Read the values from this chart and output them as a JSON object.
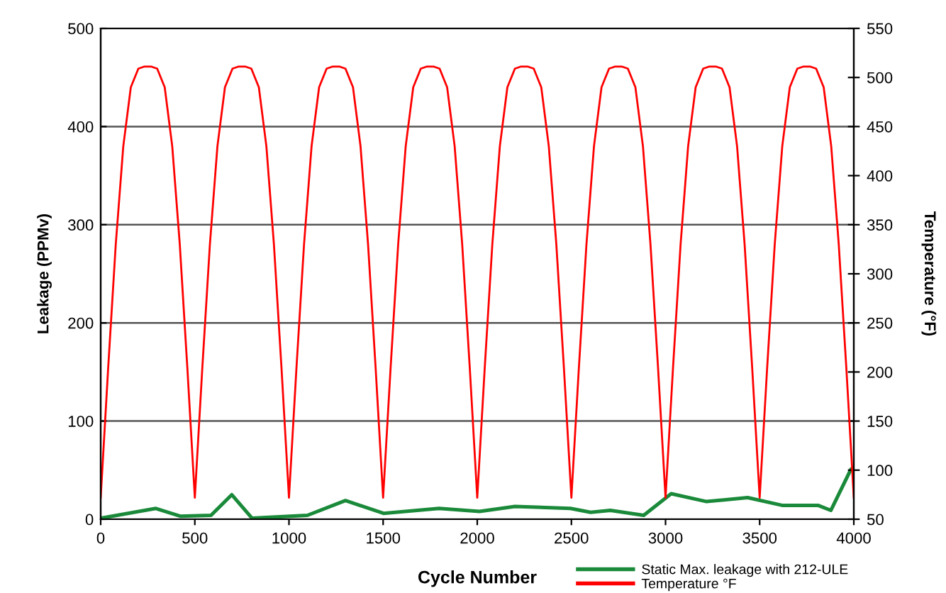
{
  "chart_data": {
    "type": "line",
    "xlabel": "Cycle Number",
    "ylabel": "Leakage (PPMv)",
    "y2label": "Temperature (°F)",
    "xlim": [
      0,
      4000
    ],
    "xticks": [
      0,
      500,
      1000,
      1500,
      2000,
      2500,
      3000,
      3500,
      4000
    ],
    "ylim": [
      0,
      500
    ],
    "yticks": [
      0,
      100,
      200,
      300,
      400,
      500
    ],
    "y2lim": [
      50,
      550
    ],
    "y2ticks": [
      50,
      100,
      150,
      200,
      250,
      300,
      350,
      400,
      450,
      500,
      550
    ],
    "grid": "y",
    "legend": "bottom right",
    "marker": "none",
    "line_style": "solid",
    "series": [
      {
        "name": "Static Max. leakage with 212-ULE",
        "color": "#1a8a3a",
        "x": [
          0,
          293,
          425,
          586,
          696,
          804,
          1098,
          1300,
          1502,
          1797,
          2012,
          2200,
          2495,
          2602,
          2707,
          2884,
          3030,
          3218,
          3436,
          3623,
          3812,
          3878,
          3985,
          4000
        ],
        "values": [
          1,
          11,
          3,
          4,
          25,
          1,
          4,
          19,
          6,
          11,
          8,
          13,
          11,
          7,
          9,
          4,
          26,
          18,
          22,
          14,
          14,
          9,
          51,
          52
        ]
      },
      {
        "name": "Temperature °F",
        "color": "#ff0000",
        "axis": "y2",
        "x": [
          0,
          40,
          80,
          120,
          160,
          200,
          230,
          270,
          300,
          340,
          380,
          420,
          460,
          500,
          540,
          580,
          620,
          660,
          700,
          730,
          770,
          800,
          840,
          880,
          920,
          960,
          1000,
          1040,
          1080,
          1120,
          1160,
          1200,
          1230,
          1270,
          1300,
          1340,
          1380,
          1420,
          1460,
          1500,
          1540,
          1580,
          1620,
          1660,
          1700,
          1730,
          1770,
          1800,
          1840,
          1880,
          1920,
          1960,
          2000,
          2040,
          2080,
          2120,
          2160,
          2200,
          2230,
          2270,
          2300,
          2340,
          2380,
          2420,
          2460,
          2500,
          2540,
          2580,
          2620,
          2660,
          2700,
          2730,
          2770,
          2800,
          2840,
          2880,
          2920,
          2960,
          3000,
          3040,
          3080,
          3120,
          3160,
          3200,
          3230,
          3270,
          3300,
          3340,
          3380,
          3420,
          3460,
          3500,
          3540,
          3580,
          3620,
          3660,
          3700,
          3730,
          3770,
          3800,
          3840,
          3880,
          3920,
          3960,
          4000
        ],
        "values": [
          72,
          205,
          330,
          430,
          490,
          509,
          511,
          511,
          509,
          490,
          430,
          330,
          205,
          72,
          205,
          330,
          430,
          490,
          509,
          511,
          511,
          509,
          490,
          430,
          330,
          205,
          72,
          205,
          330,
          430,
          490,
          509,
          511,
          511,
          509,
          490,
          430,
          330,
          205,
          72,
          205,
          330,
          430,
          490,
          509,
          511,
          511,
          509,
          490,
          430,
          330,
          205,
          72,
          205,
          330,
          430,
          490,
          509,
          511,
          511,
          509,
          490,
          430,
          330,
          205,
          72,
          205,
          330,
          430,
          490,
          509,
          511,
          511,
          509,
          490,
          430,
          330,
          205,
          72,
          205,
          330,
          430,
          490,
          509,
          511,
          511,
          509,
          490,
          430,
          330,
          205,
          72,
          205,
          330,
          430,
          490,
          509,
          511,
          511,
          509,
          490,
          430,
          330,
          205,
          72
        ]
      }
    ]
  }
}
